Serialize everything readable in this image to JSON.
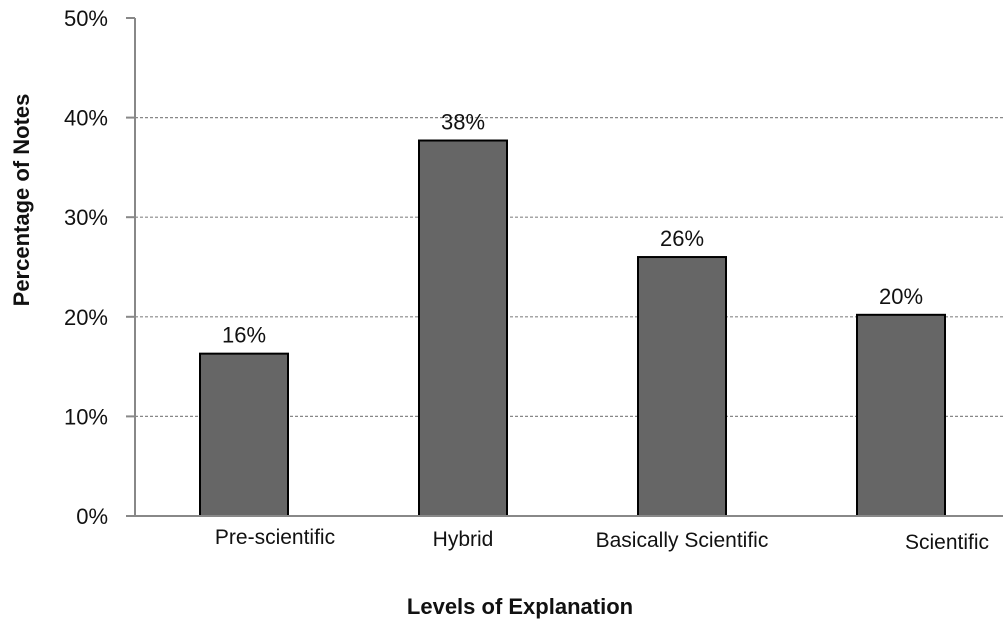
{
  "chart_data": {
    "type": "bar",
    "categories": [
      "Pre-scientific",
      "Hybrid",
      "Basically Scientific",
      "Scientific"
    ],
    "values": [
      16.3,
      37.7,
      26.0,
      20.2
    ],
    "data_labels": [
      "16%",
      "38%",
      "26%",
      "20%"
    ],
    "title": "",
    "xlabel": "Levels of Explanation",
    "ylabel": "Percentage of Notes",
    "ylim": [
      0,
      50
    ],
    "yticks": [
      0,
      10,
      20,
      30,
      40,
      50
    ],
    "ytick_labels": [
      "0%",
      "10%",
      "20%",
      "30%",
      "40%",
      "50%"
    ],
    "grid": "dashed horizontal",
    "legend": "none",
    "colors": {
      "bar_fill": "#666666",
      "bar_stroke": "#000000",
      "grid": "#888888",
      "axis": "#888888"
    }
  }
}
